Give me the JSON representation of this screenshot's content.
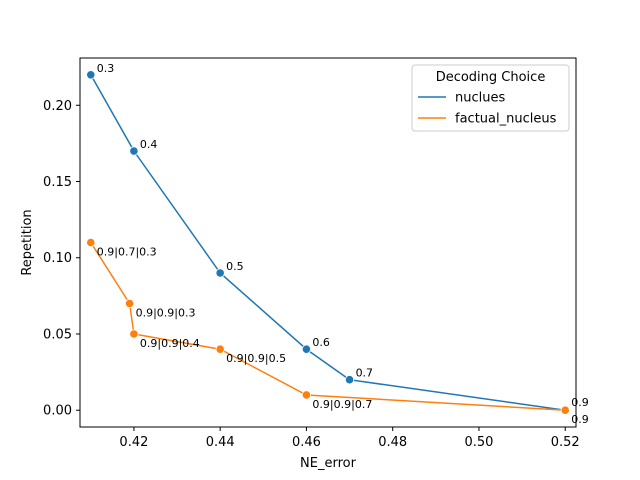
{
  "chart_data": {
    "type": "line",
    "xlabel": "NE_error",
    "ylabel": "Repetition",
    "xlim": [
      0.4075,
      0.5225
    ],
    "ylim": [
      -0.011,
      0.231
    ],
    "xticks": [
      0.42,
      0.44,
      0.46,
      0.48,
      0.5,
      0.52
    ],
    "xtick_labels": [
      "0.42",
      "0.44",
      "0.46",
      "0.48",
      "0.50",
      "0.52"
    ],
    "yticks": [
      0.0,
      0.05,
      0.1,
      0.15,
      0.2
    ],
    "ytick_labels": [
      "0.00",
      "0.05",
      "0.10",
      "0.15",
      "0.20"
    ],
    "legend": {
      "title": "Decoding Choice",
      "position": "top-right"
    },
    "series": [
      {
        "name": "nuclues",
        "color": "#1f77b4",
        "points": [
          {
            "x": 0.41,
            "y": 0.22,
            "label": "0.3"
          },
          {
            "x": 0.42,
            "y": 0.17,
            "label": "0.4"
          },
          {
            "x": 0.44,
            "y": 0.09,
            "label": "0.5"
          },
          {
            "x": 0.46,
            "y": 0.04,
            "label": "0.6"
          },
          {
            "x": 0.47,
            "y": 0.02,
            "label": "0.7"
          },
          {
            "x": 0.52,
            "y": 0.0,
            "label": "0.9"
          }
        ]
      },
      {
        "name": "factual_nucleus",
        "color": "#ff7f0e",
        "points": [
          {
            "x": 0.41,
            "y": 0.11,
            "label": "0.9|0.7|0.3"
          },
          {
            "x": 0.419,
            "y": 0.07,
            "label": "0.9|0.9|0.3"
          },
          {
            "x": 0.42,
            "y": 0.05,
            "label": "0.9|0.9|0.4"
          },
          {
            "x": 0.44,
            "y": 0.04,
            "label": "0.9|0.9|0.5"
          },
          {
            "x": 0.46,
            "y": 0.01,
            "label": "0.9|0.9|0.7"
          },
          {
            "x": 0.52,
            "y": 0.0,
            "label": "0.9"
          }
        ]
      }
    ]
  }
}
